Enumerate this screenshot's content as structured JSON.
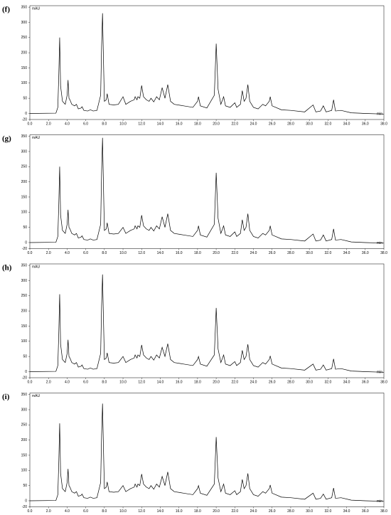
{
  "chart_data": [
    {
      "type": "line",
      "label": "(f)",
      "ylabel": "mAU",
      "xlabel": "min",
      "color": "#000000",
      "xlim": [
        0,
        38
      ],
      "ylim": [
        -20,
        355
      ],
      "xticks": [
        {
          "value": 0,
          "label": "0.0"
        },
        {
          "value": 2,
          "label": "2.0"
        },
        {
          "value": 4,
          "label": "4.0"
        },
        {
          "value": 6,
          "label": "6.0"
        },
        {
          "value": 8,
          "label": "8.0"
        },
        {
          "value": 10,
          "label": "10.0"
        },
        {
          "value": 12,
          "label": "12.0"
        },
        {
          "value": 14,
          "label": "14.0"
        },
        {
          "value": 16,
          "label": "16.0"
        },
        {
          "value": 18,
          "label": "18.0"
        },
        {
          "value": 20,
          "label": "20.0"
        },
        {
          "value": 22,
          "label": "22.0"
        },
        {
          "value": 24,
          "label": "24.0"
        },
        {
          "value": 26,
          "label": "26.0"
        },
        {
          "value": 28,
          "label": "28.0"
        },
        {
          "value": 30,
          "label": "30.0"
        },
        {
          "value": 32,
          "label": "32.0"
        },
        {
          "value": 34,
          "label": "34.0"
        },
        {
          "value": 36,
          "label": "36.0"
        },
        {
          "value": 38,
          "label": "38.0"
        }
      ],
      "yticks": [
        -20,
        0,
        50,
        100,
        150,
        200,
        250,
        300,
        350
      ],
      "x": [
        0,
        2.8,
        3.0,
        3.1,
        3.2,
        3.3,
        3.5,
        3.8,
        4.0,
        4.1,
        4.2,
        4.3,
        4.5,
        4.8,
        5.0,
        5.2,
        5.5,
        5.6,
        5.8,
        6.2,
        6.5,
        6.8,
        7.2,
        7.6,
        7.7,
        7.8,
        7.9,
        8.0,
        8.2,
        8.3,
        8.5,
        9.0,
        9.5,
        10.0,
        10.3,
        10.8,
        11.2,
        11.3,
        11.5,
        11.6,
        11.8,
        12.0,
        12.2,
        12.5,
        12.8,
        13.0,
        13.3,
        13.6,
        13.9,
        14.2,
        14.5,
        14.8,
        15.1,
        15.5,
        16.5,
        17.5,
        18.0,
        18.1,
        18.3,
        19.0,
        19.8,
        20.0,
        20.2,
        20.5,
        20.8,
        21.0,
        21.5,
        22.0,
        22.2,
        22.6,
        22.8,
        23.0,
        23.2,
        23.4,
        23.6,
        24.0,
        24.5,
        25.0,
        25.3,
        25.7,
        25.8,
        26.0,
        27.0,
        28.0,
        29.5,
        30.4,
        30.7,
        31.2,
        31.5,
        31.8,
        32.4,
        32.6,
        32.8,
        33.4,
        34.5,
        36,
        38
      ],
      "values": [
        0,
        1,
        20,
        120,
        250,
        90,
        40,
        30,
        60,
        110,
        50,
        45,
        30,
        25,
        30,
        15,
        18,
        22,
        10,
        8,
        12,
        8,
        10,
        60,
        220,
        330,
        180,
        40,
        45,
        65,
        30,
        28,
        30,
        55,
        30,
        40,
        45,
        55,
        45,
        55,
        50,
        92,
        55,
        45,
        40,
        50,
        38,
        55,
        45,
        85,
        50,
        95,
        40,
        30,
        25,
        20,
        40,
        55,
        25,
        18,
        60,
        230,
        80,
        30,
        55,
        25,
        20,
        35,
        20,
        30,
        75,
        40,
        50,
        95,
        40,
        20,
        15,
        30,
        25,
        40,
        55,
        25,
        12,
        10,
        5,
        28,
        5,
        8,
        25,
        5,
        10,
        45,
        8,
        10,
        2,
        0,
        -2
      ]
    },
    {
      "type": "line",
      "label": "(g)",
      "ylabel": "mAU",
      "xlabel": "min",
      "color": "#000000",
      "xlim": [
        0,
        38
      ],
      "ylim": [
        -20,
        355
      ],
      "xticks": [
        {
          "value": 0,
          "label": "0.0"
        },
        {
          "value": 2,
          "label": "2.0"
        },
        {
          "value": 4,
          "label": "4.0"
        },
        {
          "value": 6,
          "label": "6.0"
        },
        {
          "value": 8,
          "label": "8.0"
        },
        {
          "value": 10,
          "label": "10.0"
        },
        {
          "value": 12,
          "label": "12.0"
        },
        {
          "value": 14,
          "label": "14.0"
        },
        {
          "value": 16,
          "label": "16.0"
        },
        {
          "value": 18,
          "label": "18.0"
        },
        {
          "value": 20,
          "label": "20.0"
        },
        {
          "value": 22,
          "label": "22.0"
        },
        {
          "value": 24,
          "label": "24.0"
        },
        {
          "value": 26,
          "label": "26.0"
        },
        {
          "value": 28,
          "label": "28.0"
        },
        {
          "value": 30,
          "label": "30.0"
        },
        {
          "value": 32,
          "label": "32.0"
        },
        {
          "value": 34,
          "label": "34.0"
        },
        {
          "value": 36,
          "label": "36.0"
        },
        {
          "value": 38,
          "label": "38.0"
        }
      ],
      "yticks": [
        -20,
        0,
        50,
        100,
        150,
        200,
        250,
        300,
        350
      ],
      "x": [
        0,
        2.8,
        3.0,
        3.1,
        3.2,
        3.3,
        3.5,
        3.8,
        4.0,
        4.1,
        4.2,
        4.3,
        4.5,
        4.8,
        5.0,
        5.2,
        5.5,
        5.6,
        5.8,
        6.2,
        6.5,
        6.8,
        7.2,
        7.6,
        7.7,
        7.8,
        7.9,
        8.0,
        8.2,
        8.3,
        8.5,
        9.0,
        9.5,
        10.0,
        10.3,
        10.8,
        11.2,
        11.3,
        11.5,
        11.6,
        11.8,
        12.0,
        12.2,
        12.5,
        12.8,
        13.0,
        13.3,
        13.6,
        13.9,
        14.2,
        14.5,
        14.8,
        15.1,
        15.5,
        16.5,
        17.5,
        18.0,
        18.1,
        18.3,
        19.0,
        19.8,
        20.0,
        20.2,
        20.5,
        20.8,
        21.0,
        21.5,
        22.0,
        22.2,
        22.6,
        22.8,
        23.0,
        23.2,
        23.4,
        23.6,
        24.0,
        24.5,
        25.0,
        25.3,
        25.7,
        25.8,
        26.0,
        27.0,
        28.0,
        29.5,
        30.4,
        30.7,
        31.2,
        31.5,
        31.8,
        32.4,
        32.6,
        32.8,
        33.4,
        34.5,
        36,
        38
      ],
      "values": [
        0,
        1,
        20,
        120,
        250,
        90,
        40,
        30,
        60,
        108,
        50,
        45,
        30,
        25,
        30,
        15,
        18,
        22,
        10,
        8,
        12,
        8,
        10,
        60,
        230,
        345,
        190,
        40,
        45,
        65,
        30,
        28,
        30,
        50,
        30,
        40,
        45,
        55,
        45,
        55,
        50,
        90,
        55,
        45,
        40,
        50,
        38,
        55,
        45,
        85,
        50,
        95,
        40,
        30,
        25,
        20,
        40,
        55,
        25,
        18,
        60,
        230,
        80,
        30,
        55,
        25,
        20,
        35,
        20,
        30,
        75,
        40,
        50,
        95,
        40,
        20,
        15,
        30,
        25,
        40,
        55,
        25,
        12,
        10,
        5,
        28,
        5,
        8,
        25,
        5,
        10,
        45,
        8,
        10,
        2,
        0,
        -2
      ]
    },
    {
      "type": "line",
      "label": "(h)",
      "ylabel": "mAU",
      "xlabel": "min",
      "color": "#000000",
      "xlim": [
        0,
        38
      ],
      "ylim": [
        -20,
        355
      ],
      "xticks": [
        {
          "value": 0,
          "label": "0.0"
        },
        {
          "value": 2,
          "label": "2.0"
        },
        {
          "value": 4,
          "label": "4.0"
        },
        {
          "value": 6,
          "label": "6.0"
        },
        {
          "value": 8,
          "label": "8.0"
        },
        {
          "value": 10,
          "label": "10.0"
        },
        {
          "value": 12,
          "label": "12.0"
        },
        {
          "value": 14,
          "label": "14.0"
        },
        {
          "value": 16,
          "label": "16.0"
        },
        {
          "value": 18,
          "label": "18.0"
        },
        {
          "value": 20,
          "label": "20.0"
        },
        {
          "value": 22,
          "label": "22.0"
        },
        {
          "value": 24,
          "label": "24.0"
        },
        {
          "value": 26,
          "label": "26.0"
        },
        {
          "value": 28,
          "label": "28.0"
        },
        {
          "value": 30,
          "label": "30.0"
        },
        {
          "value": 32,
          "label": "32.0"
        },
        {
          "value": 34,
          "label": "34.0"
        },
        {
          "value": 36,
          "label": "36.0"
        },
        {
          "value": 38,
          "label": "38.0"
        }
      ],
      "yticks": [
        -20,
        0,
        50,
        100,
        150,
        200,
        250,
        300,
        350
      ],
      "x": [
        0,
        2.8,
        3.0,
        3.1,
        3.2,
        3.3,
        3.5,
        3.8,
        4.0,
        4.1,
        4.2,
        4.3,
        4.5,
        4.8,
        5.0,
        5.2,
        5.5,
        5.6,
        5.8,
        6.2,
        6.5,
        6.8,
        7.2,
        7.6,
        7.7,
        7.8,
        7.9,
        8.0,
        8.2,
        8.3,
        8.5,
        9.0,
        9.5,
        10.0,
        10.3,
        10.8,
        11.2,
        11.3,
        11.5,
        11.6,
        11.8,
        12.0,
        12.2,
        12.5,
        12.8,
        13.0,
        13.3,
        13.6,
        13.9,
        14.2,
        14.5,
        14.8,
        15.1,
        15.5,
        16.5,
        17.5,
        18.0,
        18.1,
        18.3,
        19.0,
        19.8,
        20.0,
        20.2,
        20.5,
        20.8,
        21.0,
        21.5,
        22.0,
        22.2,
        22.6,
        22.8,
        23.0,
        23.2,
        23.4,
        23.6,
        24.0,
        24.5,
        25.0,
        25.3,
        25.7,
        25.8,
        26.0,
        27.0,
        28.0,
        29.5,
        30.4,
        30.7,
        31.2,
        31.5,
        31.8,
        32.4,
        32.6,
        32.8,
        33.4,
        34.5,
        36,
        38
      ],
      "values": [
        0,
        1,
        20,
        120,
        255,
        90,
        40,
        30,
        60,
        105,
        50,
        45,
        30,
        25,
        30,
        15,
        18,
        22,
        10,
        8,
        12,
        8,
        10,
        60,
        215,
        320,
        175,
        40,
        45,
        62,
        30,
        28,
        30,
        50,
        30,
        40,
        45,
        55,
        45,
        55,
        50,
        88,
        55,
        45,
        40,
        50,
        38,
        55,
        45,
        80,
        50,
        92,
        40,
        30,
        25,
        20,
        40,
        50,
        25,
        18,
        55,
        210,
        75,
        30,
        55,
        25,
        20,
        33,
        20,
        30,
        70,
        40,
        50,
        90,
        40,
        20,
        15,
        30,
        25,
        40,
        52,
        25,
        12,
        10,
        5,
        25,
        5,
        8,
        22,
        5,
        10,
        42,
        8,
        10,
        2,
        0,
        -2
      ]
    },
    {
      "type": "line",
      "label": "(i)",
      "ylabel": "mAU",
      "xlabel": "min",
      "color": "#000000",
      "xlim": [
        0,
        38
      ],
      "ylim": [
        -20,
        355
      ],
      "xticks": [
        {
          "value": 0,
          "label": "0.0"
        },
        {
          "value": 2,
          "label": "2.0"
        },
        {
          "value": 4,
          "label": "4.0"
        },
        {
          "value": 6,
          "label": "6.0"
        },
        {
          "value": 8,
          "label": "8.0"
        },
        {
          "value": 10,
          "label": "10.0"
        },
        {
          "value": 12,
          "label": "12.0"
        },
        {
          "value": 14,
          "label": "14.0"
        },
        {
          "value": 16,
          "label": "16.0"
        },
        {
          "value": 18,
          "label": "18.0"
        },
        {
          "value": 20,
          "label": "20.0"
        },
        {
          "value": 22,
          "label": "22.0"
        },
        {
          "value": 24,
          "label": "24.0"
        },
        {
          "value": 26,
          "label": "26.0"
        },
        {
          "value": 28,
          "label": "28.0"
        },
        {
          "value": 30,
          "label": "30.0"
        },
        {
          "value": 32,
          "label": "32.0"
        },
        {
          "value": 34,
          "label": "34.0"
        },
        {
          "value": 36,
          "label": "36.0"
        },
        {
          "value": 38,
          "label": "38.0"
        }
      ],
      "yticks": [
        -20,
        0,
        50,
        100,
        150,
        200,
        250,
        300,
        350
      ],
      "x": [
        0,
        2.8,
        3.0,
        3.1,
        3.2,
        3.3,
        3.5,
        3.8,
        4.0,
        4.1,
        4.2,
        4.3,
        4.5,
        4.8,
        5.0,
        5.2,
        5.5,
        5.6,
        5.8,
        6.2,
        6.5,
        6.8,
        7.2,
        7.6,
        7.7,
        7.8,
        7.9,
        8.0,
        8.2,
        8.3,
        8.5,
        9.0,
        9.5,
        10.0,
        10.3,
        10.8,
        11.2,
        11.3,
        11.5,
        11.6,
        11.8,
        12.0,
        12.2,
        12.5,
        12.8,
        13.0,
        13.3,
        13.6,
        13.9,
        14.2,
        14.5,
        14.8,
        15.1,
        15.5,
        16.5,
        17.5,
        18.0,
        18.1,
        18.3,
        19.0,
        19.8,
        20.0,
        20.2,
        20.5,
        20.8,
        21.0,
        21.5,
        22.0,
        22.2,
        22.6,
        22.8,
        23.0,
        23.2,
        23.4,
        23.6,
        24.0,
        24.5,
        25.0,
        25.3,
        25.7,
        25.8,
        26.0,
        27.0,
        28.0,
        29.5,
        30.4,
        30.7,
        31.2,
        31.5,
        31.8,
        32.4,
        32.6,
        32.8,
        33.4,
        34.5,
        36,
        38
      ],
      "values": [
        0,
        1,
        20,
        120,
        255,
        90,
        40,
        30,
        60,
        105,
        50,
        45,
        30,
        25,
        30,
        15,
        18,
        22,
        10,
        8,
        12,
        8,
        10,
        60,
        215,
        320,
        175,
        40,
        45,
        62,
        30,
        28,
        30,
        50,
        30,
        40,
        45,
        55,
        45,
        55,
        50,
        88,
        55,
        45,
        40,
        50,
        38,
        55,
        45,
        80,
        50,
        95,
        40,
        30,
        25,
        20,
        40,
        50,
        25,
        18,
        55,
        210,
        75,
        30,
        55,
        25,
        20,
        33,
        20,
        30,
        70,
        40,
        50,
        90,
        40,
        20,
        15,
        30,
        25,
        40,
        52,
        25,
        12,
        10,
        5,
        25,
        5,
        8,
        22,
        5,
        10,
        42,
        8,
        10,
        2,
        0,
        -2
      ]
    }
  ]
}
